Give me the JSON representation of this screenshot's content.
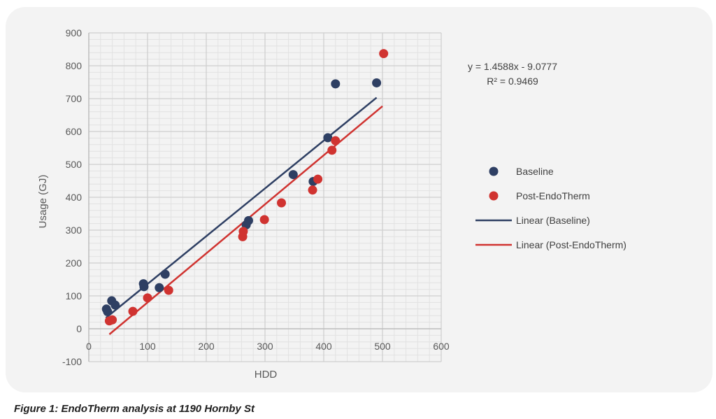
{
  "chart_data": {
    "type": "scatter",
    "title": "",
    "xlabel": "HDD",
    "ylabel": "Usage (GJ)",
    "xlim": [
      0,
      600
    ],
    "ylim": [
      -100,
      900
    ],
    "x_ticks": [
      0,
      100,
      200,
      300,
      400,
      500,
      600
    ],
    "y_ticks": [
      -100,
      0,
      100,
      200,
      300,
      400,
      500,
      600,
      700,
      800,
      900
    ],
    "grid": true,
    "legend_position": "right",
    "series": [
      {
        "name": "Baseline",
        "color": "#2e3f63",
        "points": [
          {
            "x": 30,
            "y": 60
          },
          {
            "x": 32,
            "y": 52
          },
          {
            "x": 39,
            "y": 85
          },
          {
            "x": 45,
            "y": 72
          },
          {
            "x": 93,
            "y": 137
          },
          {
            "x": 94,
            "y": 128
          },
          {
            "x": 120,
            "y": 125
          },
          {
            "x": 130,
            "y": 166
          },
          {
            "x": 268,
            "y": 316
          },
          {
            "x": 272,
            "y": 329
          },
          {
            "x": 348,
            "y": 469
          },
          {
            "x": 382,
            "y": 448
          },
          {
            "x": 407,
            "y": 581
          },
          {
            "x": 420,
            "y": 745
          },
          {
            "x": 490,
            "y": 748
          }
        ]
      },
      {
        "name": "Post-EndoTherm",
        "color": "#d03330",
        "points": [
          {
            "x": 35,
            "y": 24
          },
          {
            "x": 40,
            "y": 27
          },
          {
            "x": 75,
            "y": 53
          },
          {
            "x": 100,
            "y": 94
          },
          {
            "x": 136,
            "y": 117
          },
          {
            "x": 262,
            "y": 280
          },
          {
            "x": 263,
            "y": 296
          },
          {
            "x": 299,
            "y": 332
          },
          {
            "x": 328,
            "y": 383
          },
          {
            "x": 381,
            "y": 422
          },
          {
            "x": 390,
            "y": 455
          },
          {
            "x": 414,
            "y": 543
          },
          {
            "x": 420,
            "y": 572
          },
          {
            "x": 502,
            "y": 837
          }
        ]
      }
    ],
    "trendlines": [
      {
        "name": "Linear (Baseline)",
        "color": "#2e3f63",
        "x1": 29,
        "y1": 33,
        "x2": 490,
        "y2": 703
      },
      {
        "name": "Linear (Post-EndoTherm)",
        "color": "#d03330",
        "x1": 35,
        "y1": -17,
        "x2": 500,
        "y2": 677
      }
    ],
    "annotation": {
      "equation": "y = 1.4588x - 9.0777",
      "r2": "R² = 0.9469"
    }
  },
  "legend": {
    "items": [
      {
        "label": "Baseline",
        "kind": "marker",
        "color": "#2e3f63"
      },
      {
        "label": "Post-EndoTherm",
        "kind": "marker",
        "color": "#d03330"
      },
      {
        "label": "Linear (Baseline)",
        "kind": "line",
        "color": "#2e3f63"
      },
      {
        "label": "Linear (Post-EndoTherm)",
        "kind": "line",
        "color": "#d03330"
      }
    ]
  },
  "caption": "Figure 1: EndoTherm analysis at 1190 Hornby St"
}
